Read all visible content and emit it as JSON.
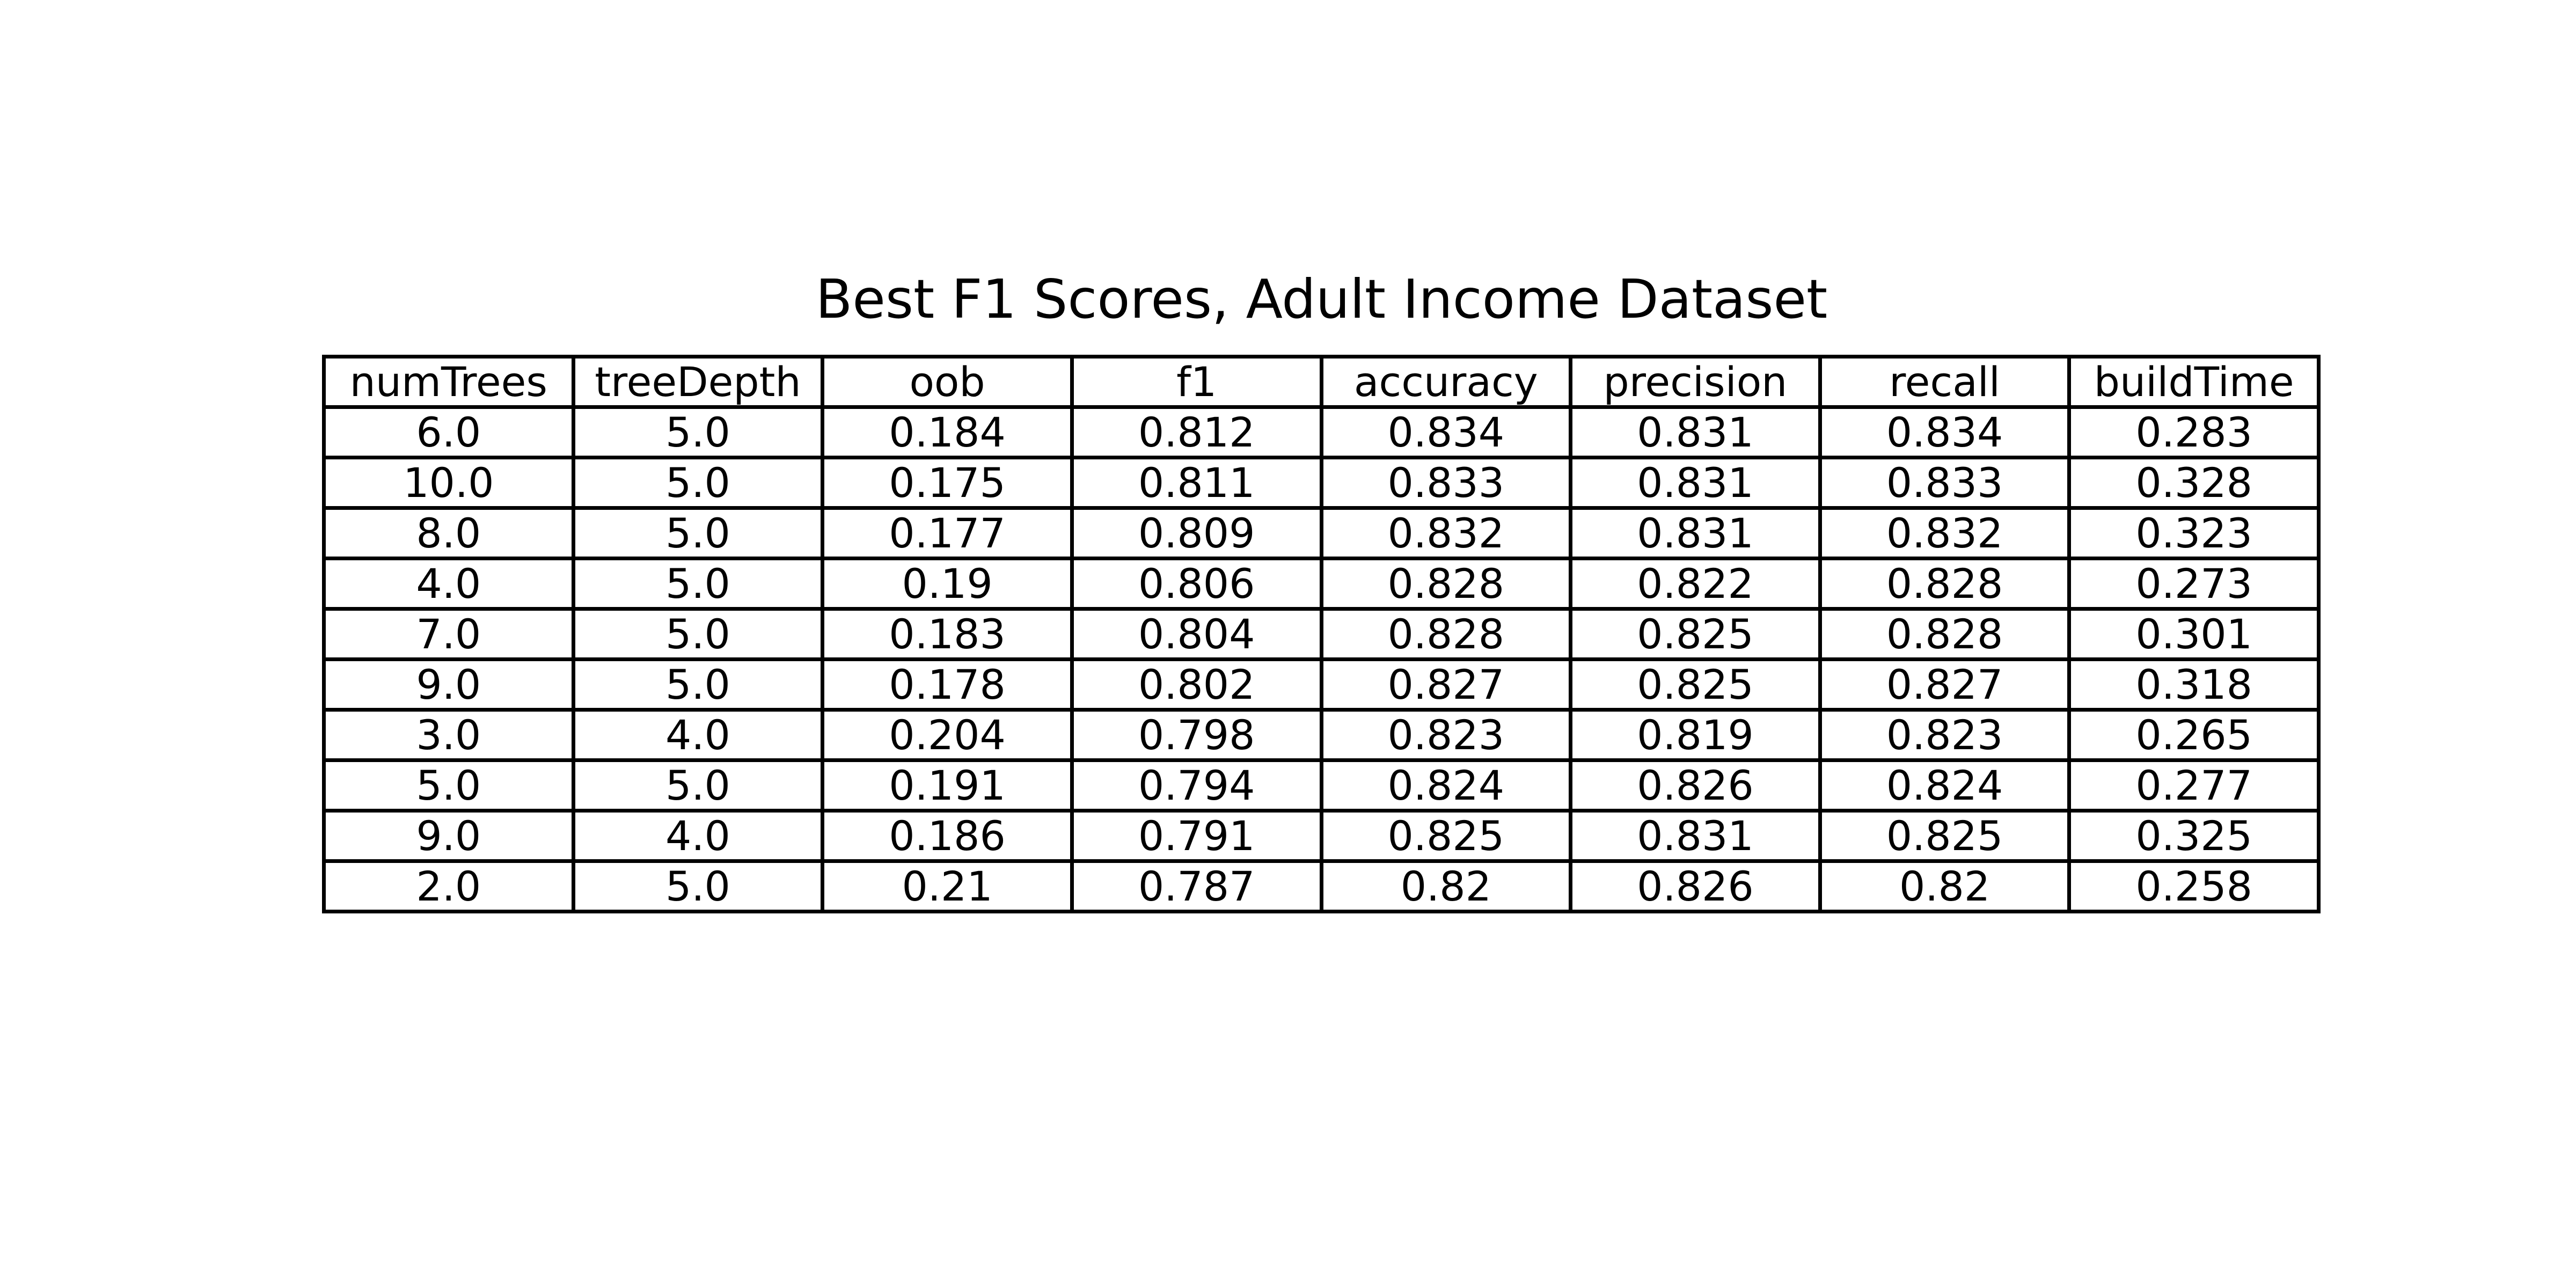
{
  "chart_data": {
    "type": "table",
    "title": "Best F1 Scores, Adult Income Dataset",
    "columns": [
      "numTrees",
      "treeDepth",
      "oob",
      "f1",
      "accuracy",
      "precision",
      "recall",
      "buildTime"
    ],
    "rows": [
      [
        "6.0",
        "5.0",
        "0.184",
        "0.812",
        "0.834",
        "0.831",
        "0.834",
        "0.283"
      ],
      [
        "10.0",
        "5.0",
        "0.175",
        "0.811",
        "0.833",
        "0.831",
        "0.833",
        "0.328"
      ],
      [
        "8.0",
        "5.0",
        "0.177",
        "0.809",
        "0.832",
        "0.831",
        "0.832",
        "0.323"
      ],
      [
        "4.0",
        "5.0",
        "0.19",
        "0.806",
        "0.828",
        "0.822",
        "0.828",
        "0.273"
      ],
      [
        "7.0",
        "5.0",
        "0.183",
        "0.804",
        "0.828",
        "0.825",
        "0.828",
        "0.301"
      ],
      [
        "9.0",
        "5.0",
        "0.178",
        "0.802",
        "0.827",
        "0.825",
        "0.827",
        "0.318"
      ],
      [
        "3.0",
        "4.0",
        "0.204",
        "0.798",
        "0.823",
        "0.819",
        "0.823",
        "0.265"
      ],
      [
        "5.0",
        "5.0",
        "0.191",
        "0.794",
        "0.824",
        "0.826",
        "0.824",
        "0.277"
      ],
      [
        "9.0",
        "4.0",
        "0.186",
        "0.791",
        "0.825",
        "0.831",
        "0.825",
        "0.325"
      ],
      [
        "2.0",
        "5.0",
        "0.21",
        "0.787",
        "0.82",
        "0.826",
        "0.82",
        "0.258"
      ]
    ],
    "colors": {
      "background": "#ffffff",
      "border": "#000000",
      "text": "#000000"
    }
  }
}
